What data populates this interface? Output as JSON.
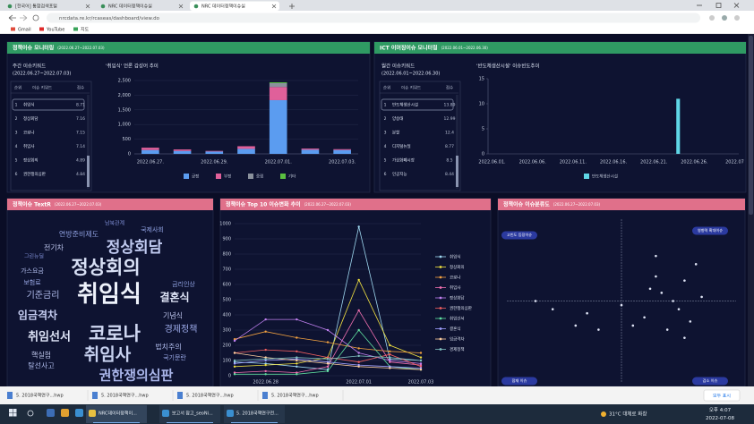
{
  "browser": {
    "tabs": [
      "[한국어] 통합검색포털",
      "NRC 데이터정책이슈실",
      "NRC 데이터정책이슈실"
    ],
    "url": "nrcdata.re.kr/rcaseas/dashboard/view.do",
    "bookmarks": [
      "Gmail",
      "YouTube",
      "지도"
    ],
    "downloads": [
      "5. 2018국책연구...hwp",
      "5. 2018국책연구...hwp",
      "5. 2018국책연구...hwp",
      "5. 2018국책연구...hwp"
    ],
    "downloads_all": "모두 표시",
    "taskbar": {
      "apps": [
        "NRC데이터정책이...",
        "보고서 참고_seoNi...",
        "5. 2018국책연구전..."
      ],
      "weather": "31°C 대체로 화창",
      "time": "오후 4:07",
      "date": "2022-07-08"
    }
  },
  "policy_monitor": {
    "title": "정책이슈 모니터링",
    "period": "(2022.06.27~2022.07.03)",
    "keywords": {
      "title": "주간 이슈키워드",
      "period": "(2022.06.27~2022.07.03)",
      "columns": [
        "순위",
        "이슈 키워드",
        "점수"
      ],
      "rows": [
        [
          1,
          "취임식",
          8.71
        ],
        [
          2,
          "정상회담",
          7.16
        ],
        [
          3,
          "코로나",
          7.15
        ],
        [
          4,
          "취임사",
          7.14
        ],
        [
          5,
          "정상회의",
          4.89
        ],
        [
          6,
          "권한쟁의심판",
          4.84
        ]
      ]
    }
  },
  "ict_monitor": {
    "title": "ICT 이머징이슈 모니터링",
    "period": "(2022.06.01~2022.06.30)",
    "keywords": {
      "title": "월간 이슈키워드",
      "period": "(2022.06.01~2022.06.30)",
      "columns": [
        "순위",
        "이슈 키워드",
        "점수"
      ],
      "rows": [
        [
          1,
          "반도체생산시설",
          13.89
        ],
        [
          2,
          "양승태",
          12.99
        ],
        [
          3,
          "분할",
          12.4
        ],
        [
          4,
          "디지털뉴딜",
          8.77
        ],
        [
          5,
          "가상화폐시장",
          8.5
        ],
        [
          6,
          "인공지능",
          8.44
        ]
      ]
    }
  },
  "wordcloud": {
    "title": "정책이슈 TextR",
    "period": "(2022.06.27~2022.07.03)",
    "words": [
      "취임식",
      "정상회의",
      "코로나",
      "취임사",
      "권한쟁의심판",
      "정상회담",
      "결혼식",
      "임금격차",
      "취임선서",
      "연방준비제도",
      "기준금리",
      "경제정책",
      "금리인상",
      "전기차",
      "가스요금",
      "보험료",
      "기념식",
      "법치주의",
      "국기문란",
      "핵실험",
      "탈선사고",
      "국제사회",
      "남북관계",
      "그린뉴딜"
    ]
  },
  "chart_data": [
    {
      "type": "bar",
      "stacked": true,
      "title": "'취임식' 언론 감성어 추이",
      "categories": [
        "2022.06.27.",
        null,
        "2022.06.29.",
        null,
        "2022.07.01.",
        null,
        "2022.07.03."
      ],
      "series": [
        {
          "name": "긍정",
          "color": "#5b9cf0",
          "values": [
            130,
            100,
            80,
            170,
            1830,
            140,
            130
          ]
        },
        {
          "name": "부정",
          "color": "#e0609a",
          "values": [
            80,
            50,
            20,
            90,
            450,
            40,
            30
          ]
        },
        {
          "name": "중립",
          "color": "#8a919c",
          "values": [
            0,
            0,
            0,
            0,
            130,
            0,
            0
          ]
        },
        {
          "name": "기타",
          "color": "#5ac040",
          "values": [
            0,
            0,
            0,
            0,
            30,
            0,
            0
          ]
        }
      ],
      "ylim": [
        0,
        2500
      ],
      "yticks": [
        0,
        500,
        {
          "value": 1000,
          "label": "1,000"
        },
        {
          "value": 1500,
          "label": "1,500"
        },
        {
          "value": 2000,
          "label": "2,000"
        },
        {
          "value": 2500,
          "label": "2,500"
        }
      ],
      "grid": true
    },
    {
      "type": "bar",
      "stacked": false,
      "title": "'반도체생산시설' 이슈빈도추이",
      "categories": [
        "2022.06.01.",
        null,
        null,
        null,
        null,
        "2022.06.06.",
        null,
        null,
        null,
        null,
        "2022.06.11.",
        null,
        null,
        null,
        null,
        "2022.06.16.",
        null,
        null,
        null,
        null,
        "2022.06.21.",
        null,
        null,
        null,
        null,
        "2022.06.26.",
        null,
        null,
        null,
        null,
        "2022.07"
      ],
      "series": [
        {
          "name": "반도체생산시설",
          "color": "#5fd6e6",
          "values": [
            0,
            0,
            0,
            0,
            0,
            0,
            0,
            0,
            0,
            0,
            0,
            0,
            0,
            0,
            0,
            0,
            0,
            0,
            0,
            0,
            0,
            0,
            0,
            11,
            0,
            0,
            0,
            0,
            0,
            0,
            0
          ]
        }
      ],
      "ylim": [
        0,
        15
      ],
      "yticks": [
        0,
        5,
        10,
        15
      ],
      "grid": false
    },
    {
      "type": "line",
      "title": "정책이슈 Top 10 이슈변화 추이",
      "period": "(2022.06.27~2022.07.03)",
      "categories": [
        null,
        "2022.06.28",
        null,
        null,
        "2022.07.01",
        null,
        "2022.07.03"
      ],
      "series": [
        {
          "name": "취임식",
          "color": "#9fd8f0",
          "values": [
            90,
            80,
            60,
            40,
            980,
            110,
            100
          ]
        },
        {
          "name": "정상회의",
          "color": "#f0e040",
          "values": [
            60,
            70,
            80,
            120,
            630,
            200,
            120
          ]
        },
        {
          "name": "코로나",
          "color": "#f0a040",
          "values": [
            240,
            290,
            250,
            220,
            180,
            160,
            150
          ]
        },
        {
          "name": "취임사",
          "color": "#f070b0",
          "values": [
            20,
            30,
            20,
            60,
            430,
            90,
            70
          ]
        },
        {
          "name": "정상회담",
          "color": "#c080f0",
          "values": [
            230,
            370,
            370,
            300,
            150,
            100,
            80
          ]
        },
        {
          "name": "권한쟁의심판",
          "color": "#f06060",
          "values": [
            150,
            170,
            160,
            120,
            90,
            140,
            60
          ]
        },
        {
          "name": "취임선서",
          "color": "#60e0a0",
          "values": [
            10,
            10,
            10,
            30,
            300,
            60,
            40
          ]
        },
        {
          "name": "결혼식",
          "color": "#a0a0ff",
          "values": [
            80,
            100,
            110,
            90,
            70,
            60,
            50
          ]
        },
        {
          "name": "임금격차",
          "color": "#ffd0a0",
          "values": [
            150,
            120,
            100,
            80,
            60,
            50,
            40
          ]
        },
        {
          "name": "경제정책",
          "color": "#80c0c0",
          "values": [
            100,
            110,
            120,
            110,
            130,
            120,
            100
          ]
        }
      ],
      "ylim": [
        0,
        1000
      ],
      "yticks": [
        0,
        100,
        200,
        300,
        400,
        500,
        600,
        700,
        800,
        900,
        1000
      ],
      "grid": true
    },
    {
      "type": "scatter",
      "title": "정책이슈 이슈분류도",
      "period": "(2022.06.27~2022.07.03)",
      "quadrant_labels": [
        "고빈도 등장이슈",
        "영향력 확대이슈",
        "잠재 이슈",
        "감소 이슈"
      ],
      "color": "#dfe4f5",
      "x": [
        0.3,
        0.25,
        0.35,
        0.45,
        0.5,
        0.6,
        0.55,
        0.7,
        0.2,
        0.1,
        -0.2,
        -0.4,
        -0.6,
        -0.75,
        -0.3,
        0.4,
        0.55,
        0.3,
        0.65,
        0.0
      ],
      "y": [
        0.3,
        0.15,
        0.1,
        0.0,
        -0.1,
        -0.25,
        0.25,
        0.05,
        -0.2,
        -0.3,
        -0.35,
        -0.3,
        -0.1,
        0.0,
        -0.15,
        -0.35,
        -0.45,
        0.55,
        0.45,
        -0.05
      ],
      "xlim": [
        -1,
        1
      ],
      "ylim": [
        -1,
        1
      ]
    }
  ]
}
